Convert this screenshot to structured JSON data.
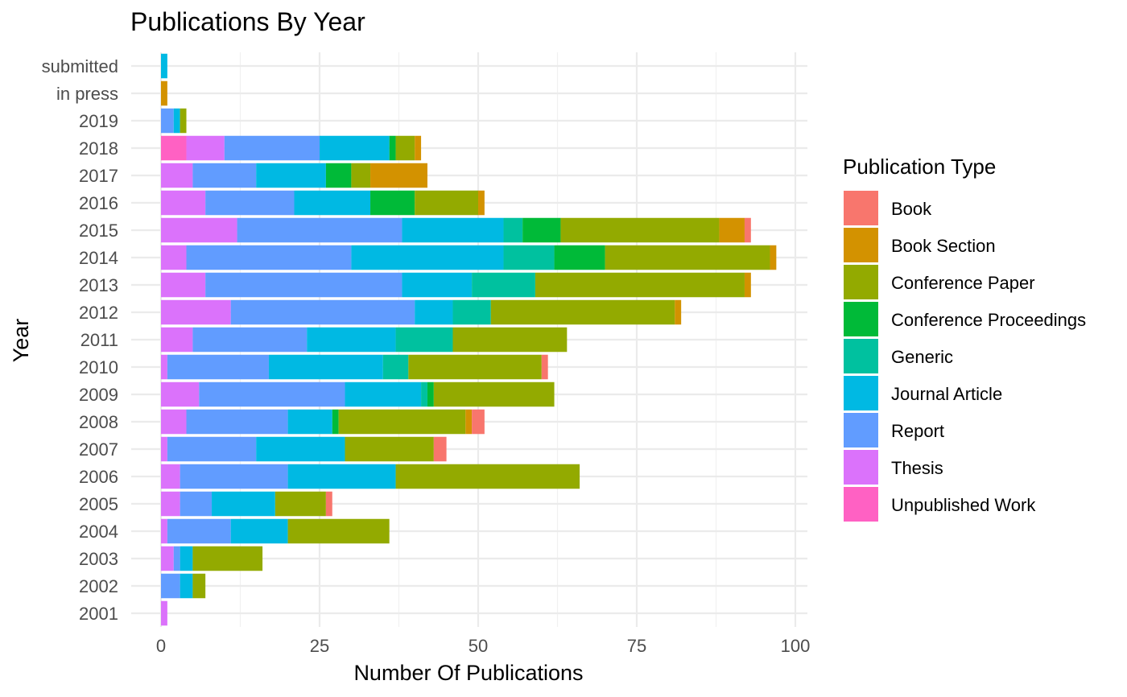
{
  "chart_data": {
    "type": "bar",
    "orientation": "horizontal",
    "stacked": true,
    "title": "Publications By Year",
    "xlabel": "Number Of Publications",
    "ylabel": "Year",
    "xlim": [
      -4.7,
      102.5
    ],
    "x_ticks": [
      0,
      25,
      50,
      75,
      100
    ],
    "grid": true,
    "legend_title": "Publication Type",
    "legend_position": "right",
    "categories": [
      "submitted",
      "in press",
      "2019",
      "2018",
      "2017",
      "2016",
      "2015",
      "2014",
      "2013",
      "2012",
      "2011",
      "2010",
      "2009",
      "2008",
      "2007",
      "2006",
      "2005",
      "2004",
      "2003",
      "2002",
      "2001"
    ],
    "series": [
      {
        "name": "Unpublished Work",
        "color": "#FF61C3",
        "values": [
          0,
          0,
          0,
          4,
          0,
          0,
          0,
          0,
          0,
          0,
          0,
          0,
          0,
          0,
          0,
          0,
          0,
          0,
          0,
          0,
          0
        ]
      },
      {
        "name": "Thesis",
        "color": "#DB72FB",
        "values": [
          0,
          0,
          0,
          6,
          5,
          7,
          12,
          4,
          7,
          11,
          5,
          1,
          6,
          4,
          1,
          3,
          3,
          1,
          2,
          0,
          1
        ]
      },
      {
        "name": "Report",
        "color": "#619CFF",
        "values": [
          0,
          0,
          2,
          15,
          10,
          14,
          26,
          26,
          31,
          29,
          18,
          16,
          23,
          16,
          14,
          17,
          5,
          10,
          1,
          3,
          0
        ]
      },
      {
        "name": "Journal Article",
        "color": "#00B9E3",
        "values": [
          1,
          0,
          1,
          11,
          11,
          12,
          16,
          24,
          11,
          6,
          14,
          18,
          12,
          7,
          14,
          17,
          10,
          9,
          2,
          2,
          0
        ]
      },
      {
        "name": "Generic",
        "color": "#00C19F",
        "values": [
          0,
          0,
          0,
          0,
          0,
          0,
          3,
          8,
          10,
          6,
          9,
          4,
          1,
          0,
          0,
          0,
          0,
          0,
          0,
          0,
          0
        ]
      },
      {
        "name": "Conference Proceedings",
        "color": "#00BA38",
        "values": [
          0,
          0,
          0,
          1,
          4,
          7,
          6,
          8,
          0,
          0,
          0,
          0,
          1,
          1,
          0,
          0,
          0,
          0,
          0,
          0,
          0
        ]
      },
      {
        "name": "Conference Paper",
        "color": "#93AA00",
        "values": [
          0,
          0,
          1,
          3,
          3,
          10,
          25,
          26,
          33,
          29,
          18,
          21,
          19,
          20,
          14,
          29,
          8,
          16,
          11,
          2,
          0
        ]
      },
      {
        "name": "Book Section",
        "color": "#D39200",
        "values": [
          0,
          1,
          0,
          1,
          9,
          1,
          4,
          1,
          1,
          1,
          0,
          0,
          0,
          1,
          0,
          0,
          0,
          0,
          0,
          0,
          0
        ]
      },
      {
        "name": "Book",
        "color": "#F8766D",
        "values": [
          0,
          0,
          0,
          0,
          0,
          0,
          1,
          0,
          0,
          0,
          0,
          1,
          0,
          2,
          2,
          0,
          1,
          0,
          0,
          0,
          0
        ]
      }
    ],
    "legend_order": [
      "Book",
      "Book Section",
      "Conference Paper",
      "Conference Proceedings",
      "Generic",
      "Journal Article",
      "Report",
      "Thesis",
      "Unpublished Work"
    ]
  }
}
